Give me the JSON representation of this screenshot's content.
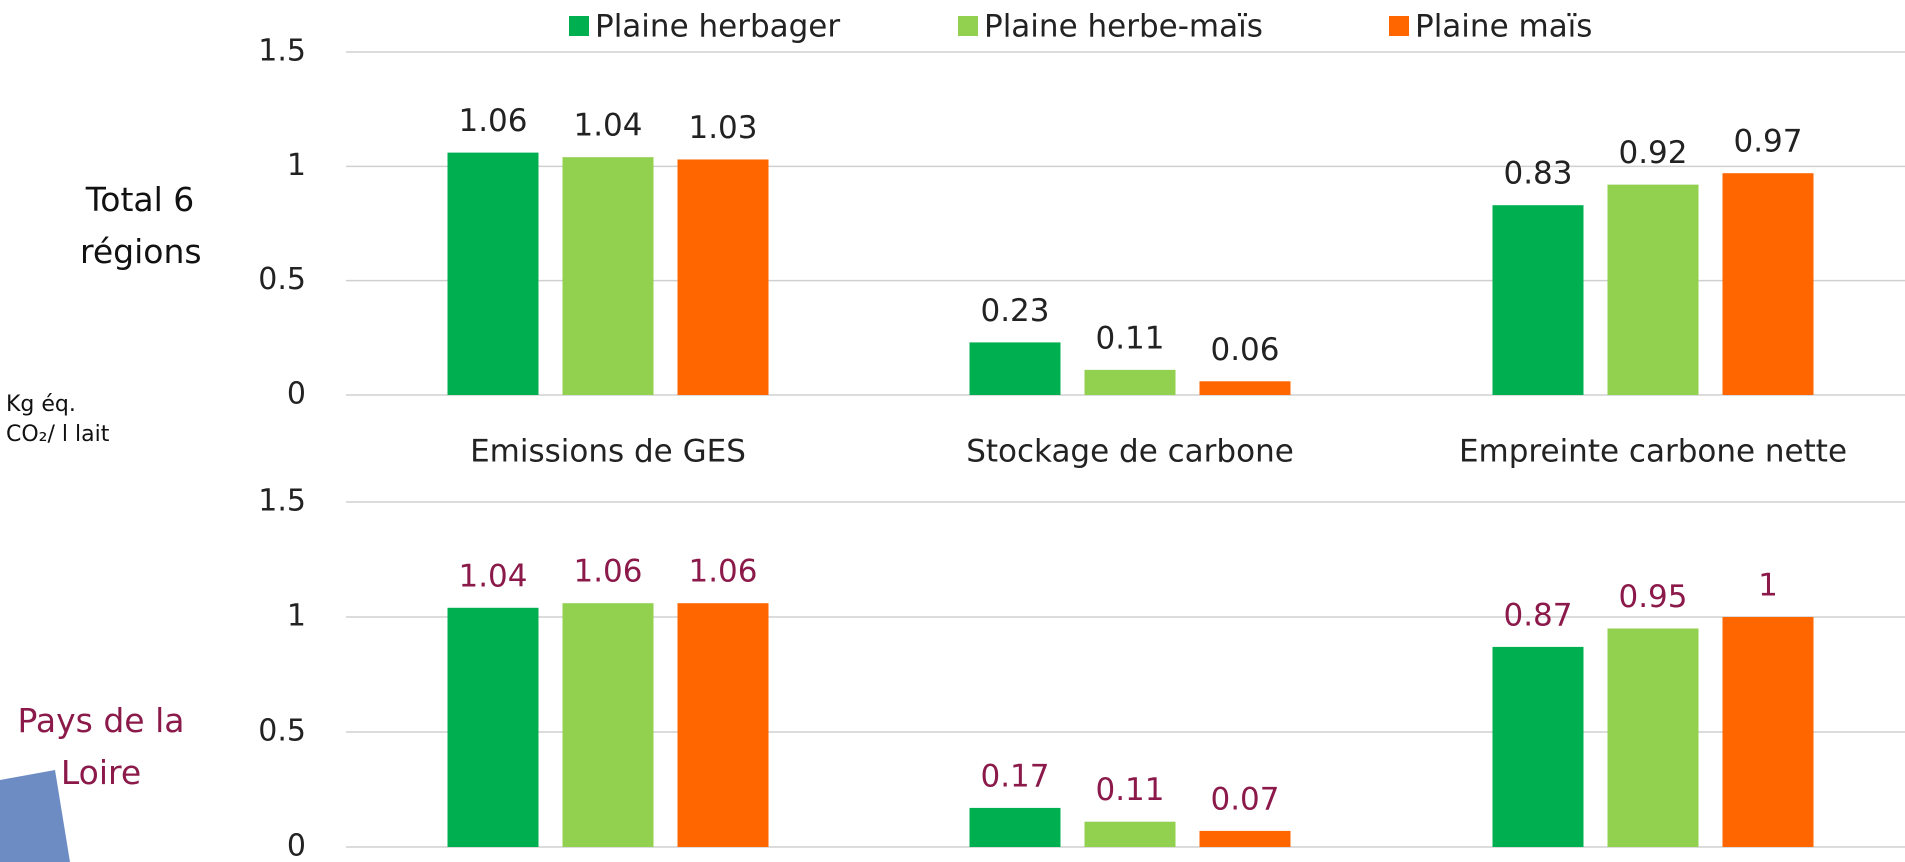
{
  "chart_data": [
    {
      "type": "bar",
      "side_label": "Total 6 régions",
      "y_label": "Kg éq. CO₂/ l lait",
      "categories": [
        "Emissions de GES",
        "Stockage de carbone",
        "Empreinte carbone nette"
      ],
      "series": [
        {
          "name": "Plaine herbager",
          "color": "#00b050",
          "values": [
            1.06,
            0.23,
            0.83
          ]
        },
        {
          "name": "Plaine herbe-maïs",
          "color": "#92d050",
          "values": [
            1.04,
            0.11,
            0.92
          ]
        },
        {
          "name": "Plaine maïs",
          "color": "#ff6600",
          "values": [
            1.03,
            0.06,
            0.97
          ]
        }
      ],
      "ylim": [
        0,
        1.5
      ],
      "yticks": [
        0,
        0.5,
        1,
        1.5
      ],
      "grid": true,
      "label_color": "#222222"
    },
    {
      "type": "bar",
      "side_label": "Pays de la Loire",
      "side_color": "#8b1a4a",
      "categories": [
        null,
        null,
        null
      ],
      "series": [
        {
          "color": "#00b050",
          "values": [
            1.04,
            0.17,
            0.87
          ]
        },
        {
          "color": "#92d050",
          "values": [
            1.06,
            0.11,
            0.95
          ]
        },
        {
          "color": "#ff6600",
          "values": [
            1.06,
            0.07,
            1
          ]
        }
      ],
      "ylim": [
        0,
        1.5
      ],
      "yticks": [
        0,
        0.5,
        1,
        1.5
      ],
      "grid": true,
      "label_color": "#8b1a4a"
    }
  ]
}
